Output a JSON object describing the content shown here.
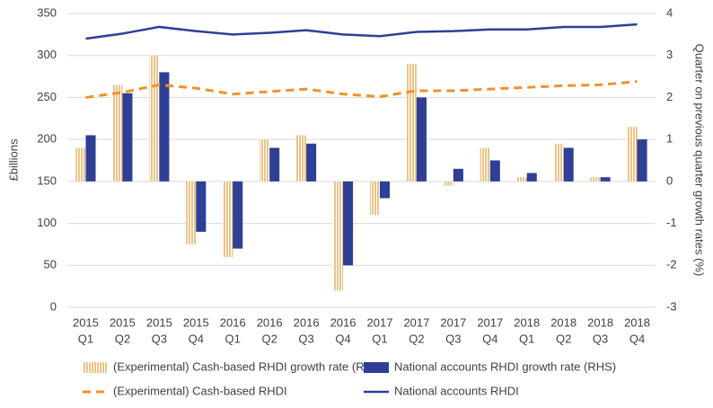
{
  "chart_data": {
    "type": "combo",
    "y_label": "£billions",
    "y2_label": "Quarter on previous quarter growth rates (%)",
    "categories": [
      [
        "2015",
        "Q1"
      ],
      [
        "2015",
        "Q2"
      ],
      [
        "2015",
        "Q3"
      ],
      [
        "2015",
        "Q4"
      ],
      [
        "2016",
        "Q1"
      ],
      [
        "2016",
        "Q2"
      ],
      [
        "2016",
        "Q3"
      ],
      [
        "2016",
        "Q4"
      ],
      [
        "2017",
        "Q1"
      ],
      [
        "2017",
        "Q2"
      ],
      [
        "2017",
        "Q3"
      ],
      [
        "2017",
        "Q4"
      ],
      [
        "2018",
        "Q1"
      ],
      [
        "2018",
        "Q2"
      ],
      [
        "2018",
        "Q3"
      ],
      [
        "2018",
        "Q4"
      ]
    ],
    "ylim": [
      0,
      350
    ],
    "yticks": [
      0,
      50,
      100,
      150,
      200,
      250,
      300,
      350
    ],
    "y2lim": [
      -3,
      4
    ],
    "y2ticks": [
      -3,
      -2,
      -1,
      0,
      1,
      2,
      3,
      4
    ],
    "grid": true,
    "series": [
      {
        "name": "(Experimental) Cash-based RHDI growth rate (RHS)",
        "type": "bar",
        "style": "hatched",
        "axis": "y2",
        "color": "#e0a54c",
        "values": [
          0.8,
          2.3,
          3.0,
          -1.5,
          -1.8,
          1.0,
          1.1,
          -2.6,
          -0.8,
          2.8,
          -0.1,
          0.8,
          0.1,
          0.9,
          0.1,
          1.3
        ]
      },
      {
        "name": "National accounts RHDI growth rate (RHS)",
        "type": "bar",
        "style": "solid",
        "axis": "y2",
        "color": "#2e3f95",
        "values": [
          1.1,
          2.1,
          2.6,
          -1.2,
          -1.6,
          0.8,
          0.9,
          -2.0,
          -0.4,
          2.0,
          0.3,
          0.5,
          0.2,
          0.8,
          0.1,
          1.0
        ]
      },
      {
        "name": "(Experimental) Cash-based RHDI",
        "type": "line",
        "style": "dashed",
        "color": "#f0922b",
        "values": [
          250,
          256,
          265,
          261,
          254,
          257,
          260,
          254,
          251,
          258,
          258,
          260,
          262,
          264,
          265,
          269
        ]
      },
      {
        "name": "National accounts RHDI",
        "type": "line",
        "style": "solid",
        "color": "#2e3f95",
        "values": [
          320,
          326,
          334,
          329,
          325,
          327,
          330,
          325,
          323,
          328,
          329,
          331,
          331,
          334,
          334,
          337
        ]
      }
    ]
  }
}
